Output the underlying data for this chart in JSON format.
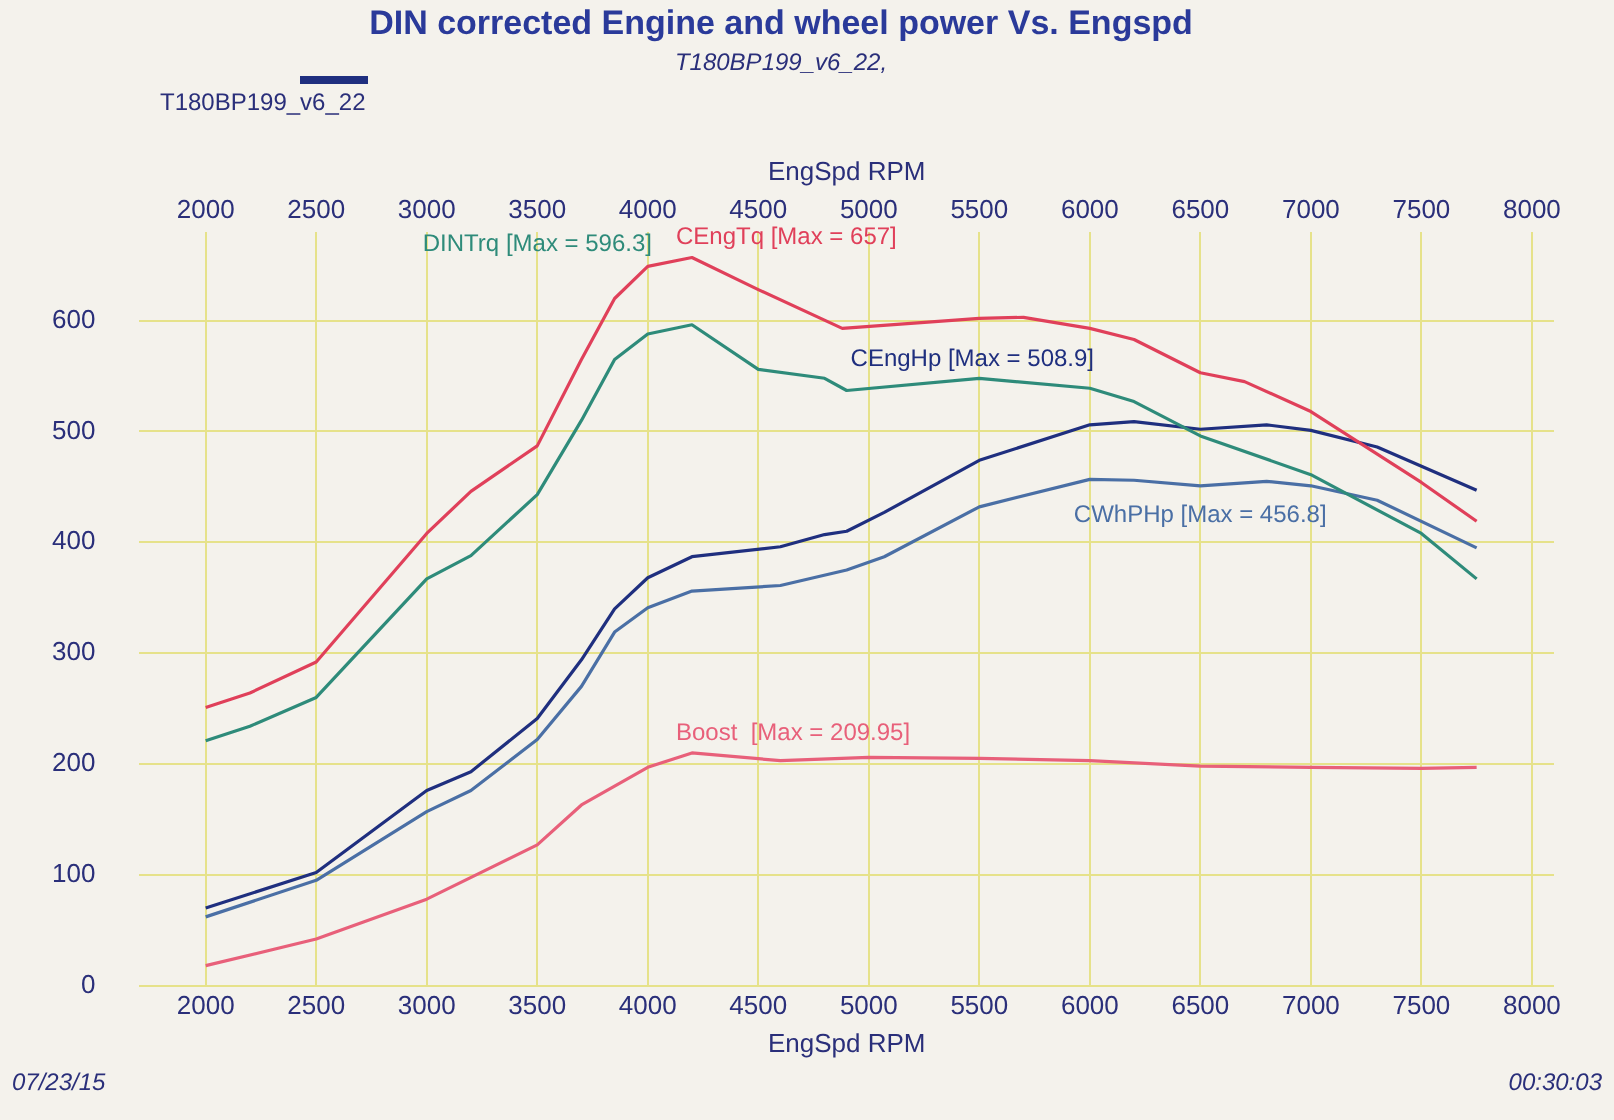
{
  "chart_data": {
    "type": "line",
    "title": "DIN corrected Engine and wheel power Vs. Engspd",
    "subtitle": "T180BP199_v6_22,",
    "xlabel": "EngSpd RPM",
    "x2label": "EngSpd RPM",
    "xlim": [
      1700,
      8100
    ],
    "xticks": [
      2000,
      2500,
      3000,
      3500,
      4000,
      4500,
      5000,
      5500,
      6000,
      6500,
      7000,
      7500,
      8000
    ],
    "x2lim": [
      1700,
      8100
    ],
    "x2ticks": [
      2000,
      2500,
      3000,
      3500,
      4000,
      4500,
      5000,
      5500,
      6000,
      6500,
      7000,
      7500,
      8000
    ],
    "ylim": [
      0,
      680
    ],
    "yticks": [
      0,
      100,
      200,
      300,
      400,
      500,
      600
    ],
    "grid": true,
    "legend": false,
    "marker": "none",
    "line_style": "solid",
    "annotations": [
      "T180BP199_v6_22",
      "07/23/15",
      "00:30:03"
    ],
    "series": [
      {
        "name": "CEngTq [Max = 657]",
        "color": "#e0405a",
        "x": [
          2000,
          2200,
          2500,
          3000,
          3200,
          3500,
          3700,
          3850,
          4000,
          4200,
          4500,
          4880,
          5500,
          5700,
          6000,
          6200,
          6500,
          6700,
          7000,
          7500,
          7750
        ],
        "values": [
          251,
          264,
          292,
          408,
          446,
          487,
          565,
          620,
          649,
          657,
          628,
          593,
          602,
          603,
          593,
          583,
          553,
          545,
          518,
          454,
          419
        ]
      },
      {
        "name": "DINTrq [Max = 596.3]",
        "color": "#2e8b7a",
        "x": [
          2000,
          2200,
          2500,
          3000,
          3200,
          3500,
          3700,
          3850,
          4000,
          4200,
          4500,
          4800,
          4900,
          5500,
          6000,
          6200,
          6500,
          7000,
          7500,
          7750
        ],
        "values": [
          221,
          234,
          260,
          367,
          388,
          443,
          510,
          565,
          588,
          596.3,
          556,
          548,
          537,
          548,
          539,
          527,
          496,
          461,
          408,
          367
        ]
      },
      {
        "name": "CEngHp [Max = 508.9]",
        "color": "#1f2f7f",
        "x": [
          2000,
          2500,
          3000,
          3200,
          3500,
          3700,
          3850,
          4000,
          4200,
          4600,
          4800,
          4900,
          5070,
          5500,
          6000,
          6200,
          6500,
          6800,
          7000,
          7300,
          7750
        ],
        "values": [
          70,
          102,
          176,
          193,
          241,
          294,
          340,
          368,
          387,
          396,
          407,
          410,
          427,
          474,
          506,
          508.9,
          502,
          506,
          501,
          486,
          447
        ]
      },
      {
        "name": "CWhPHp [Max = 456.8]",
        "color": "#4a6fa5",
        "x": [
          2000,
          2500,
          3000,
          3200,
          3500,
          3700,
          3850,
          4000,
          4200,
          4600,
          4900,
          5070,
          5500,
          6000,
          6200,
          6500,
          6800,
          7000,
          7300,
          7750
        ],
        "values": [
          62,
          95,
          157,
          176,
          222,
          270,
          319,
          341,
          356,
          361,
          375,
          387,
          432,
          456.8,
          456,
          451,
          455,
          451,
          438,
          395
        ]
      },
      {
        "name": "Boost  [Max = 209.95]",
        "color": "#e8607a",
        "x": [
          2000,
          2500,
          3000,
          3500,
          3700,
          4000,
          4200,
          4600,
          5000,
          5500,
          6000,
          6500,
          7000,
          7500,
          7750
        ],
        "values": [
          18,
          42,
          78,
          127,
          163,
          197,
          209.95,
          203,
          206,
          205,
          203,
          198,
          197,
          196,
          197
        ]
      }
    ]
  }
}
